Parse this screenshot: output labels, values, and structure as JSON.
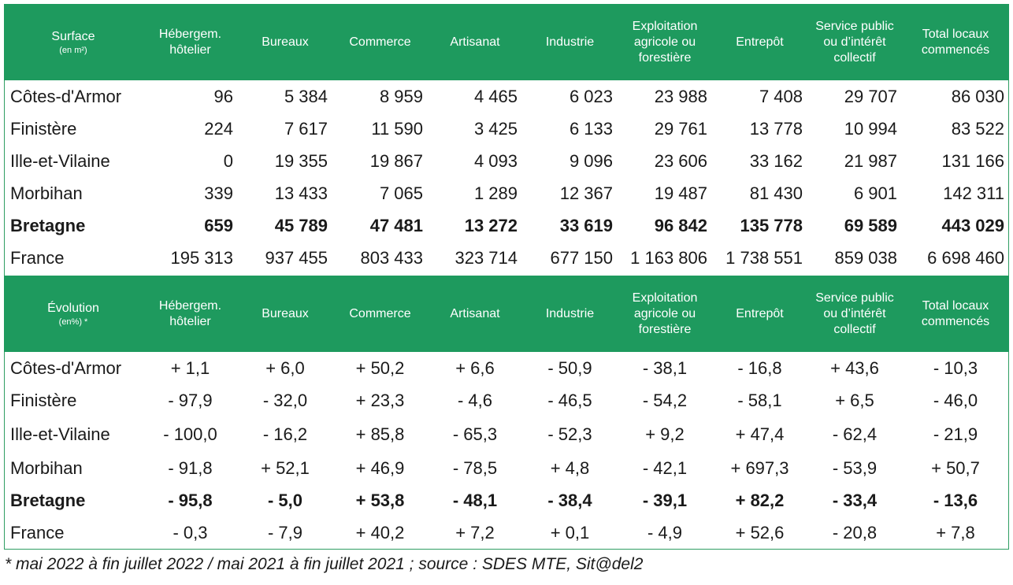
{
  "surface": {
    "corner_label": "Surface",
    "corner_sub": "(en m²)",
    "columns": [
      "Hébergem. hôtelier",
      "Bureaux",
      "Commerce",
      "Artisanat",
      "Industrie",
      "Exploitation agricole ou forestière",
      "Entrepôt",
      "Service public ou d’intérêt collectif",
      "Total locaux commencés"
    ],
    "rows": [
      {
        "label": "Côtes-d'Armor",
        "values": [
          "96",
          "5 384",
          "8 959",
          "4 465",
          "6 023",
          "23 988",
          "7 408",
          "29 707",
          "86 030"
        ]
      },
      {
        "label": "Finistère",
        "values": [
          "224",
          "7 617",
          "11 590",
          "3 425",
          "6 133",
          "29 761",
          "13 778",
          "10 994",
          "83 522"
        ]
      },
      {
        "label": "Ille-et-Vilaine",
        "values": [
          "0",
          "19 355",
          "19 867",
          "4 093",
          "9 096",
          "23 606",
          "33 162",
          "21 987",
          "131 166"
        ]
      },
      {
        "label": "Morbihan",
        "values": [
          "339",
          "13 433",
          "7 065",
          "1 289",
          "12 367",
          "19 487",
          "81 430",
          "6 901",
          "142 311"
        ]
      },
      {
        "label": "Bretagne",
        "values": [
          "659",
          "45 789",
          "47 481",
          "13 272",
          "33 619",
          "96 842",
          "135 778",
          "69 589",
          "443 029"
        ]
      },
      {
        "label": "France",
        "values": [
          "195 313",
          "937 455",
          "803 433",
          "323 714",
          "677 150",
          "1 163 806",
          "1 738 551",
          "859 038",
          "6 698 460"
        ]
      }
    ]
  },
  "evolution": {
    "corner_label": "Évolution",
    "corner_sub": "(en%) *",
    "columns": [
      "Hébergem. hôtelier",
      "Bureaux",
      "Commerce",
      "Artisanat",
      "Industrie",
      "Exploitation agricole ou forestière",
      "Entrepôt",
      "Service public ou d’intérêt collectif",
      "Total locaux commencés"
    ],
    "rows": [
      {
        "label": "Côtes-d'Armor",
        "values": [
          "+ 1,1",
          "+ 6,0",
          "+ 50,2",
          "+ 6,6",
          "- 50,9",
          "- 38,1",
          "- 16,8",
          "+ 43,6",
          "- 10,3"
        ]
      },
      {
        "label": "Finistère",
        "values": [
          "- 97,9",
          "- 32,0",
          "+ 23,3",
          "- 4,6",
          "- 46,5",
          "- 54,2",
          "- 58,1",
          "+ 6,5",
          "- 46,0"
        ]
      },
      {
        "label": "Ille-et-Vilaine",
        "values": [
          "- 100,0",
          "- 16,2",
          "+ 85,8",
          "- 65,3",
          "- 52,3",
          "+ 9,2",
          "+ 47,4",
          "- 62,4",
          "- 21,9"
        ]
      },
      {
        "label": "Morbihan",
        "values": [
          "- 91,8",
          "+ 52,1",
          "+ 46,9",
          "- 78,5",
          "+ 4,8",
          "- 42,1",
          "+ 697,3",
          "- 53,9",
          "+ 50,7"
        ]
      },
      {
        "label": "Bretagne",
        "values": [
          "- 95,8",
          "- 5,0",
          "+ 53,8",
          "- 48,1",
          "- 38,4",
          "- 39,1",
          "+ 82,2",
          "- 33,4",
          "- 13,6"
        ]
      },
      {
        "label": "France",
        "values": [
          "- 0,3",
          "- 7,9",
          "+ 40,2",
          "+ 7,2",
          "+ 0,1",
          "- 4,9",
          "+ 52,6",
          "- 20,8",
          "+ 7,8"
        ]
      }
    ]
  },
  "footnote": "* mai 2022 à fin juillet 2022 / mai 2021 à fin juillet 2021 ; source : SDES MTE, Sit@del2",
  "colors": {
    "header_bg": "#1e9a5e",
    "header_text": "#ffffff",
    "border": "#2f9e63"
  }
}
